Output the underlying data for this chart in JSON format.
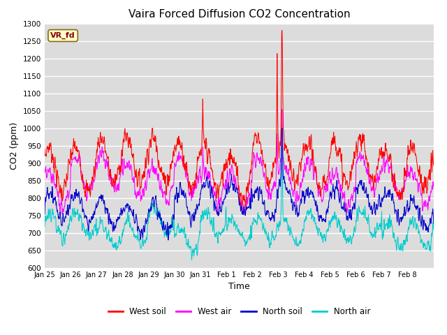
{
  "title": "Vaira Forced Diffusion CO2 Concentration",
  "xlabel": "Time",
  "ylabel": "CO2 (ppm)",
  "ylim": [
    600,
    1300
  ],
  "yticks": [
    600,
    650,
    700,
    750,
    800,
    850,
    900,
    950,
    1000,
    1050,
    1100,
    1150,
    1200,
    1250,
    1300
  ],
  "x_labels": [
    "Jan 25",
    "Jan 26",
    "Jan 27",
    "Jan 28",
    "Jan 29",
    "Jan 30",
    "Jan 31",
    "Feb 1",
    "Feb 2",
    "Feb 3",
    "Feb 4",
    "Feb 5",
    "Feb 6",
    "Feb 7",
    "Feb 8"
  ],
  "colors": {
    "west_soil": "#ff0000",
    "west_air": "#ff00ff",
    "north_soil": "#0000cc",
    "north_air": "#00cccc"
  },
  "legend_labels": [
    "West soil",
    "West air",
    "North soil",
    "North air"
  ],
  "label_box": "VR_fd",
  "plot_bg": "#dcdcdc"
}
